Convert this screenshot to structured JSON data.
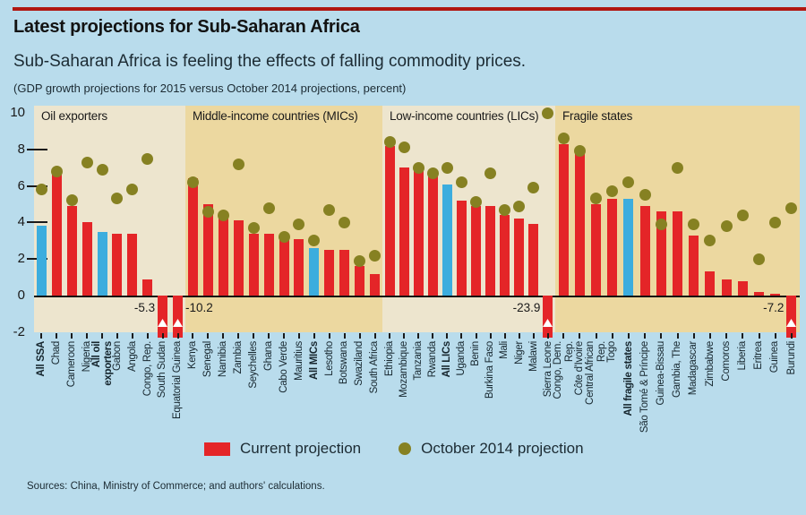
{
  "header": {
    "title": "Latest projections for Sub-Saharan Africa",
    "subtitle": "Sub-Saharan Africa is feeling the effects of falling commodity prices.",
    "note": "(GDP growth projections for 2015 versus October 2014 projections, percent)"
  },
  "legend": {
    "current": "Current projection",
    "october": "October 2014 projection"
  },
  "source": "Sources: China, Ministry of Commerce; and authors' calculations.",
  "chart_data": {
    "type": "bar",
    "title": "GDP growth projections for 2015 versus October 2014 projections",
    "ylabel": "percent",
    "ylim": [
      -2,
      10
    ],
    "yticks": [
      10,
      8,
      6,
      4,
      2,
      0,
      -2
    ],
    "grid": "off",
    "legend_position": "bottom",
    "series_meaning": {
      "bar": "Current projection",
      "dot": "October 2014 projection"
    },
    "colors": {
      "background": "#b9dcec",
      "panel_cream": "#ede5ce",
      "panel_tan": "#ecd8a0",
      "bar_red": "#e42528",
      "bar_blue": "#3cadde",
      "dot_olive": "#868122",
      "axis": "#1a1a1a",
      "top_rule": "#b01812"
    },
    "groups": [
      {
        "header": "Oil exporters",
        "panel": "cream",
        "entries": [
          {
            "label": "All SSA",
            "agg": true,
            "current": 3.8,
            "october": 5.8
          },
          {
            "label": "Chad",
            "current": 6.6,
            "october": 6.8
          },
          {
            "label": "Cameroon",
            "current": 4.9,
            "october": 5.2
          },
          {
            "label": "Nigeria",
            "current": 4.0,
            "october": 7.3
          },
          {
            "label": "All oil\nexporters",
            "agg": true,
            "current": 3.5,
            "october": 6.9
          },
          {
            "label": "Gabon",
            "current": 3.4,
            "october": 5.3
          },
          {
            "label": "Angola",
            "current": 3.4,
            "october": 5.8
          },
          {
            "label": "Congo, Rep.",
            "current": 0.9,
            "october": 7.5
          },
          {
            "label": "South Sudan",
            "current": -5.3,
            "october": null,
            "break_label": "-5.3",
            "break_side": "left"
          },
          {
            "label": "Equatorial Guinea",
            "current": -10.2,
            "october": null,
            "break_label": "-10.2",
            "break_side": "right"
          }
        ]
      },
      {
        "header": "Middle-income countries (MICs)",
        "panel": "tan",
        "entries": [
          {
            "label": "Kenya",
            "current": 6.4,
            "october": 6.2
          },
          {
            "label": "Senegal",
            "current": 5.0,
            "october": 4.6
          },
          {
            "label": "Namibia",
            "current": 4.5,
            "october": 4.4
          },
          {
            "label": "Zambia",
            "current": 4.1,
            "october": 7.2
          },
          {
            "label": "Seychelles",
            "current": 3.4,
            "october": 3.7
          },
          {
            "label": "Ghana",
            "current": 3.4,
            "october": 4.8
          },
          {
            "label": "Cabo Verde",
            "current": 3.3,
            "october": 3.2
          },
          {
            "label": "Mauritius",
            "current": 3.1,
            "october": 3.9
          },
          {
            "label": "All MICs",
            "agg": true,
            "current": 2.6,
            "october": 3.0
          },
          {
            "label": "Lesotho",
            "current": 2.5,
            "october": 4.7
          },
          {
            "label": "Botswana",
            "current": 2.5,
            "october": 4.0
          },
          {
            "label": "Swaziland",
            "current": 1.6,
            "october": 1.9
          },
          {
            "label": "South Africa",
            "current": 1.2,
            "october": 2.2
          }
        ]
      },
      {
        "header": "Low-income countries (LICs)",
        "panel": "cream",
        "entries": [
          {
            "label": "Ethiopia",
            "current": 8.2,
            "october": 8.4
          },
          {
            "label": "Mozambique",
            "current": 7.0,
            "october": 8.1
          },
          {
            "label": "Tanzania",
            "current": 6.9,
            "october": 7.0
          },
          {
            "label": "Rwanda",
            "current": 6.5,
            "october": 6.7
          },
          {
            "label": "All LICs",
            "agg": true,
            "current": 6.1,
            "october": 7.0
          },
          {
            "label": "Uganda",
            "current": 5.2,
            "october": 6.2
          },
          {
            "label": "Benin",
            "current": 4.9,
            "october": 5.1
          },
          {
            "label": "Burkina Faso",
            "current": 4.9,
            "october": 6.7
          },
          {
            "label": "Mali",
            "current": 4.4,
            "october": 4.7
          },
          {
            "label": "Niger",
            "current": 4.2,
            "october": 4.9
          },
          {
            "label": "Malawi",
            "current": 3.9,
            "october": 5.9
          },
          {
            "label": "Sierra Leone",
            "current": -23.9,
            "october": 10.0,
            "break_label": "-23.9",
            "break_side": "left"
          }
        ]
      },
      {
        "header": "Fragile states",
        "panel": "tan",
        "entries": [
          {
            "label": "Congo, Dem.\nRep.",
            "current": 8.3,
            "october": 8.6
          },
          {
            "label": "Côte d'Ivoire",
            "current": 7.8,
            "october": 7.9
          },
          {
            "label": "Central African\nRep.",
            "current": 5.0,
            "october": 5.3
          },
          {
            "label": "Togo",
            "current": 5.3,
            "october": 5.7
          },
          {
            "label": "All fragile states",
            "agg": true,
            "current": 5.3,
            "october": 6.2
          },
          {
            "label": "São Tomé & Príncipe",
            "current": 4.9,
            "october": 5.5
          },
          {
            "label": "Guinea-Bissau",
            "current": 4.6,
            "october": 3.9
          },
          {
            "label": "Gambia, The",
            "current": 4.6,
            "october": 7.0
          },
          {
            "label": "Madagascar",
            "current": 3.3,
            "october": 3.9
          },
          {
            "label": "Zimbabwe",
            "current": 1.3,
            "october": 3.0
          },
          {
            "label": "Comoros",
            "current": 0.9,
            "october": 3.8
          },
          {
            "label": "Liberia",
            "current": 0.8,
            "october": 4.4
          },
          {
            "label": "Eritrea",
            "current": 0.2,
            "october": 2.0
          },
          {
            "label": "Guinea",
            "current": 0.1,
            "october": 4.0
          },
          {
            "label": "Burundi",
            "current": -7.2,
            "october": 4.8,
            "break_label": "-7.2",
            "break_side": "left"
          }
        ]
      }
    ]
  }
}
